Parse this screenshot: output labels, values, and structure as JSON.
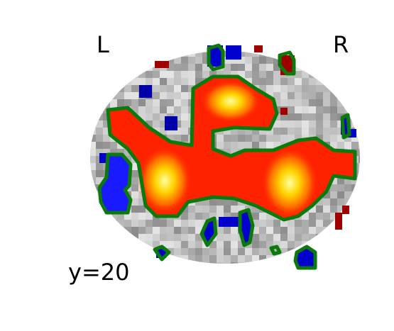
{
  "labels": {
    "left": "L",
    "right": "R",
    "slice": "y=20"
  },
  "colors": {
    "background": "#ffffff",
    "outline": "#0a7a0a",
    "positive_low": "#8b0000",
    "positive_mid": "#ff2a00",
    "positive_high": "#ffff6e",
    "negative": "#0000cc",
    "negative_bright": "#1a1aff",
    "anatomy_light": "#dcdcdc",
    "anatomy_dark": "#8a8a8a"
  }
}
